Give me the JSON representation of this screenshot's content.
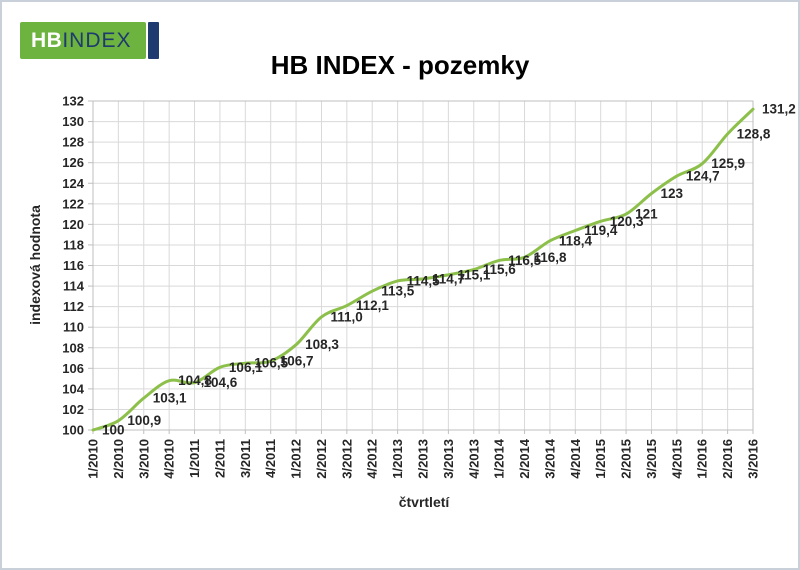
{
  "logo": {
    "hb_text": "HB",
    "index_text": "INDEX",
    "green": "#6db33f",
    "navy": "#1e3a6e"
  },
  "title": "HB INDEX - pozemky",
  "chart_data": {
    "type": "line",
    "title": "HB INDEX - pozemky",
    "xlabel": "čtvrtletí",
    "ylabel": "indexová hodnota",
    "categories": [
      "1/2010",
      "2/2010",
      "3/2010",
      "4/2010",
      "1/2011",
      "2/2011",
      "3/2011",
      "4/2011",
      "1/2012",
      "2/2012",
      "3/2012",
      "4/2012",
      "1/2013",
      "2/2013",
      "3/2013",
      "4/2013",
      "1/2014",
      "2/2014",
      "3/2014",
      "4/2014",
      "1/2015",
      "2/2015",
      "3/2015",
      "4/2015",
      "1/2016",
      "2/2016",
      "3/2016"
    ],
    "values": [
      100,
      100.9,
      103.1,
      104.8,
      104.6,
      106.1,
      106.5,
      106.7,
      108.3,
      111.0,
      112.1,
      113.5,
      114.5,
      114.7,
      115.1,
      115.6,
      116.5,
      116.8,
      118.4,
      119.4,
      120.3,
      121,
      123,
      124.7,
      125.9,
      128.8,
      131.2
    ],
    "point_labels": [
      "100",
      "100,9",
      "103,1",
      "104,8",
      "104,6",
      "106,1",
      "106,5",
      "106,7",
      "108,3",
      "111,0",
      "112,1",
      "113,5",
      "114,5",
      "114,7",
      "115,1",
      "115,6",
      "116,5",
      "116,8",
      "118,4",
      "119,4",
      "120,3",
      "121",
      "123",
      "124,7",
      "125,9",
      "128,8",
      "131,2"
    ],
    "ylim": [
      100,
      132
    ],
    "ytick_step": 2,
    "grid": true,
    "legend": "none",
    "line_color": "#8dc04b",
    "text_color": "#262626",
    "grid_color": "#d9d9d9"
  }
}
